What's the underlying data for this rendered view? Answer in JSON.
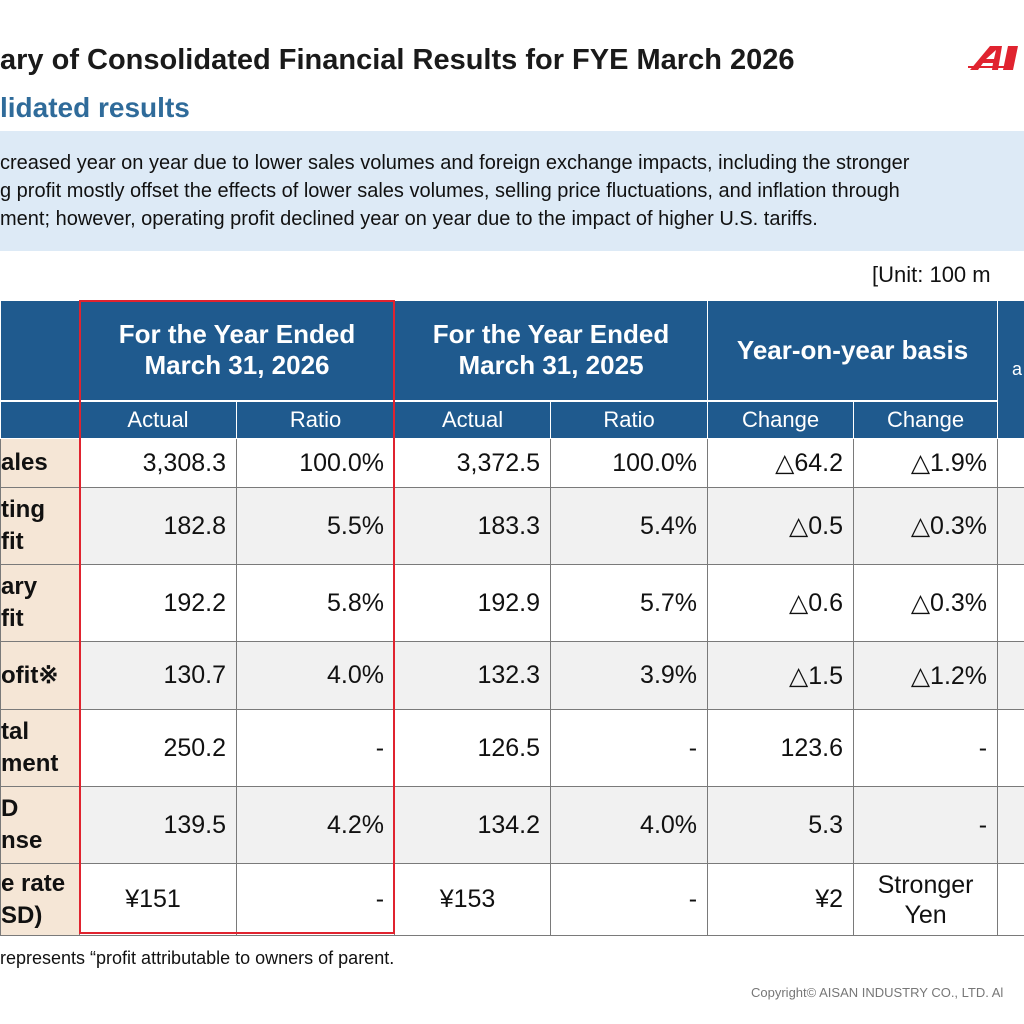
{
  "header": {
    "title": "ary of Consolidated Financial Results for FYE March 2026",
    "subtitle": "lidated results",
    "logo_text": "AI",
    "brand_color": "#e0232f"
  },
  "summary": {
    "lines": [
      "creased year on year due to lower sales volumes and foreign exchange impacts, including the stronger",
      "g profit mostly offset the effects of lower sales volumes, selling price fluctuations, and inflation through",
      "ment; however, operating profit declined year on year due to the impact of higher U.S. tariffs."
    ]
  },
  "unit_label": "[Unit: 100 m",
  "table": {
    "headers": {
      "col_2026": [
        "For the Year Ended",
        "March 31, 2026"
      ],
      "col_2025": [
        "For the Year Ended",
        "March 31, 2025"
      ],
      "col_yoy": "Year-on-year basis",
      "col_extra": "a",
      "sub": [
        "Actual",
        "Ratio",
        "Actual",
        "Ratio",
        "Change",
        "Change"
      ]
    },
    "rows": [
      {
        "label": [
          "ales"
        ],
        "a26": "3,308.3",
        "r26": "100.0%",
        "a25": "3,372.5",
        "r25": "100.0%",
        "chg": "△64.2",
        "chgp": "△1.9%"
      },
      {
        "label": [
          "ting",
          "fit"
        ],
        "a26": "182.8",
        "r26": "5.5%",
        "a25": "183.3",
        "r25": "5.4%",
        "chg": "△0.5",
        "chgp": "△0.3%"
      },
      {
        "label": [
          "ary",
          "fit"
        ],
        "a26": "192.2",
        "r26": "5.8%",
        "a25": "192.9",
        "r25": "5.7%",
        "chg": "△0.6",
        "chgp": "△0.3%"
      },
      {
        "label": [
          "ofit※"
        ],
        "a26": "130.7",
        "r26": "4.0%",
        "a25": "132.3",
        "r25": "3.9%",
        "chg": "△1.5",
        "chgp": "△1.2%"
      },
      {
        "label": [
          "tal",
          "ment"
        ],
        "a26": "250.2",
        "r26": "-",
        "a25": "126.5",
        "r25": "-",
        "chg": "123.6",
        "chgp": "-"
      },
      {
        "label": [
          "D",
          "nse"
        ],
        "a26": "139.5",
        "r26": "4.2%",
        "a25": "134.2",
        "r25": "4.0%",
        "chg": "5.3",
        "chgp": "-"
      },
      {
        "label": [
          "e rate",
          "SD)"
        ],
        "a26": "¥151",
        "r26": "-",
        "a25": "¥153",
        "r25": "-",
        "chg": "¥2",
        "chgp": "Stronger Yen"
      }
    ]
  },
  "footnote": "represents “profit attributable to owners of parent.",
  "copyright": "Copyright© AISAN INDUSTRY CO., LTD. Al"
}
